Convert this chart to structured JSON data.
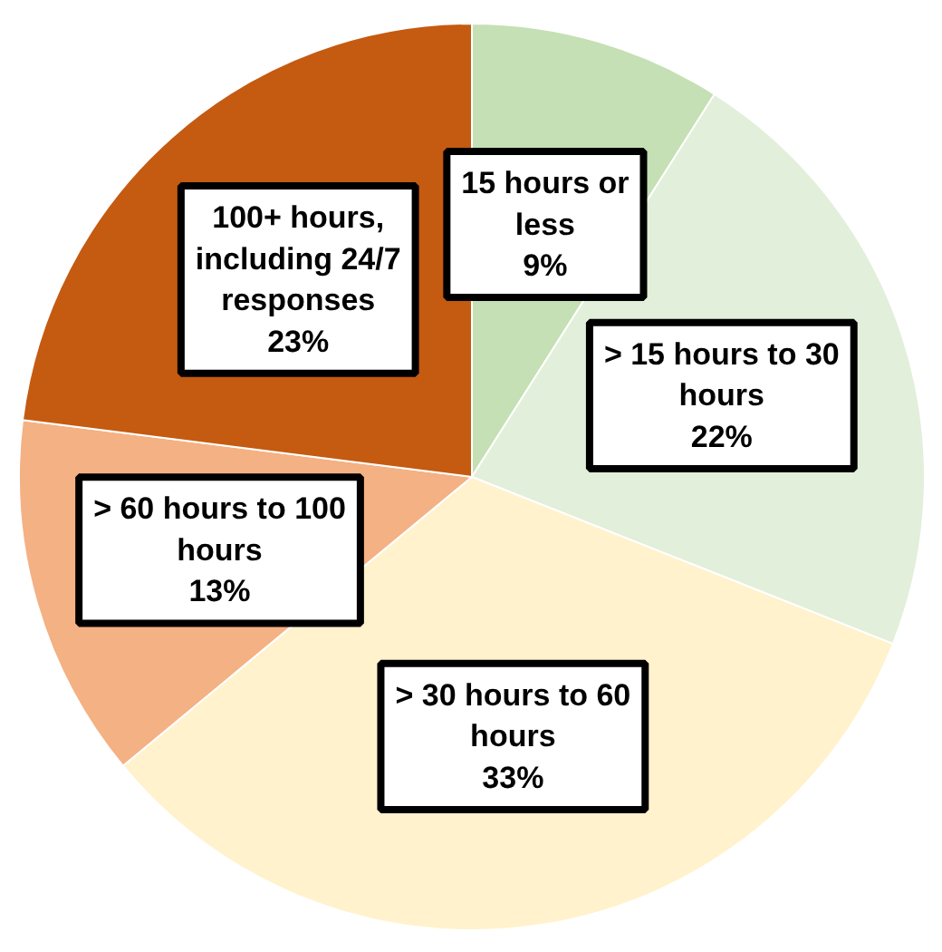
{
  "chart_data": {
    "type": "pie",
    "categories": [
      "15 hours or\nless",
      "> 15 hours to 30\nhours",
      "> 30 hours to 60\nhours",
      "> 60 hours to 100\nhours",
      "100+ hours,\nincluding 24/7\nresponses"
    ],
    "values": [
      9,
      22,
      33,
      13,
      23
    ],
    "value_labels": [
      "9%",
      "22%",
      "33%",
      "13%",
      "23%"
    ],
    "colors": [
      "#c5e0b4",
      "#e2efda",
      "#fff2cc",
      "#f4b183",
      "#c55a11"
    ]
  }
}
